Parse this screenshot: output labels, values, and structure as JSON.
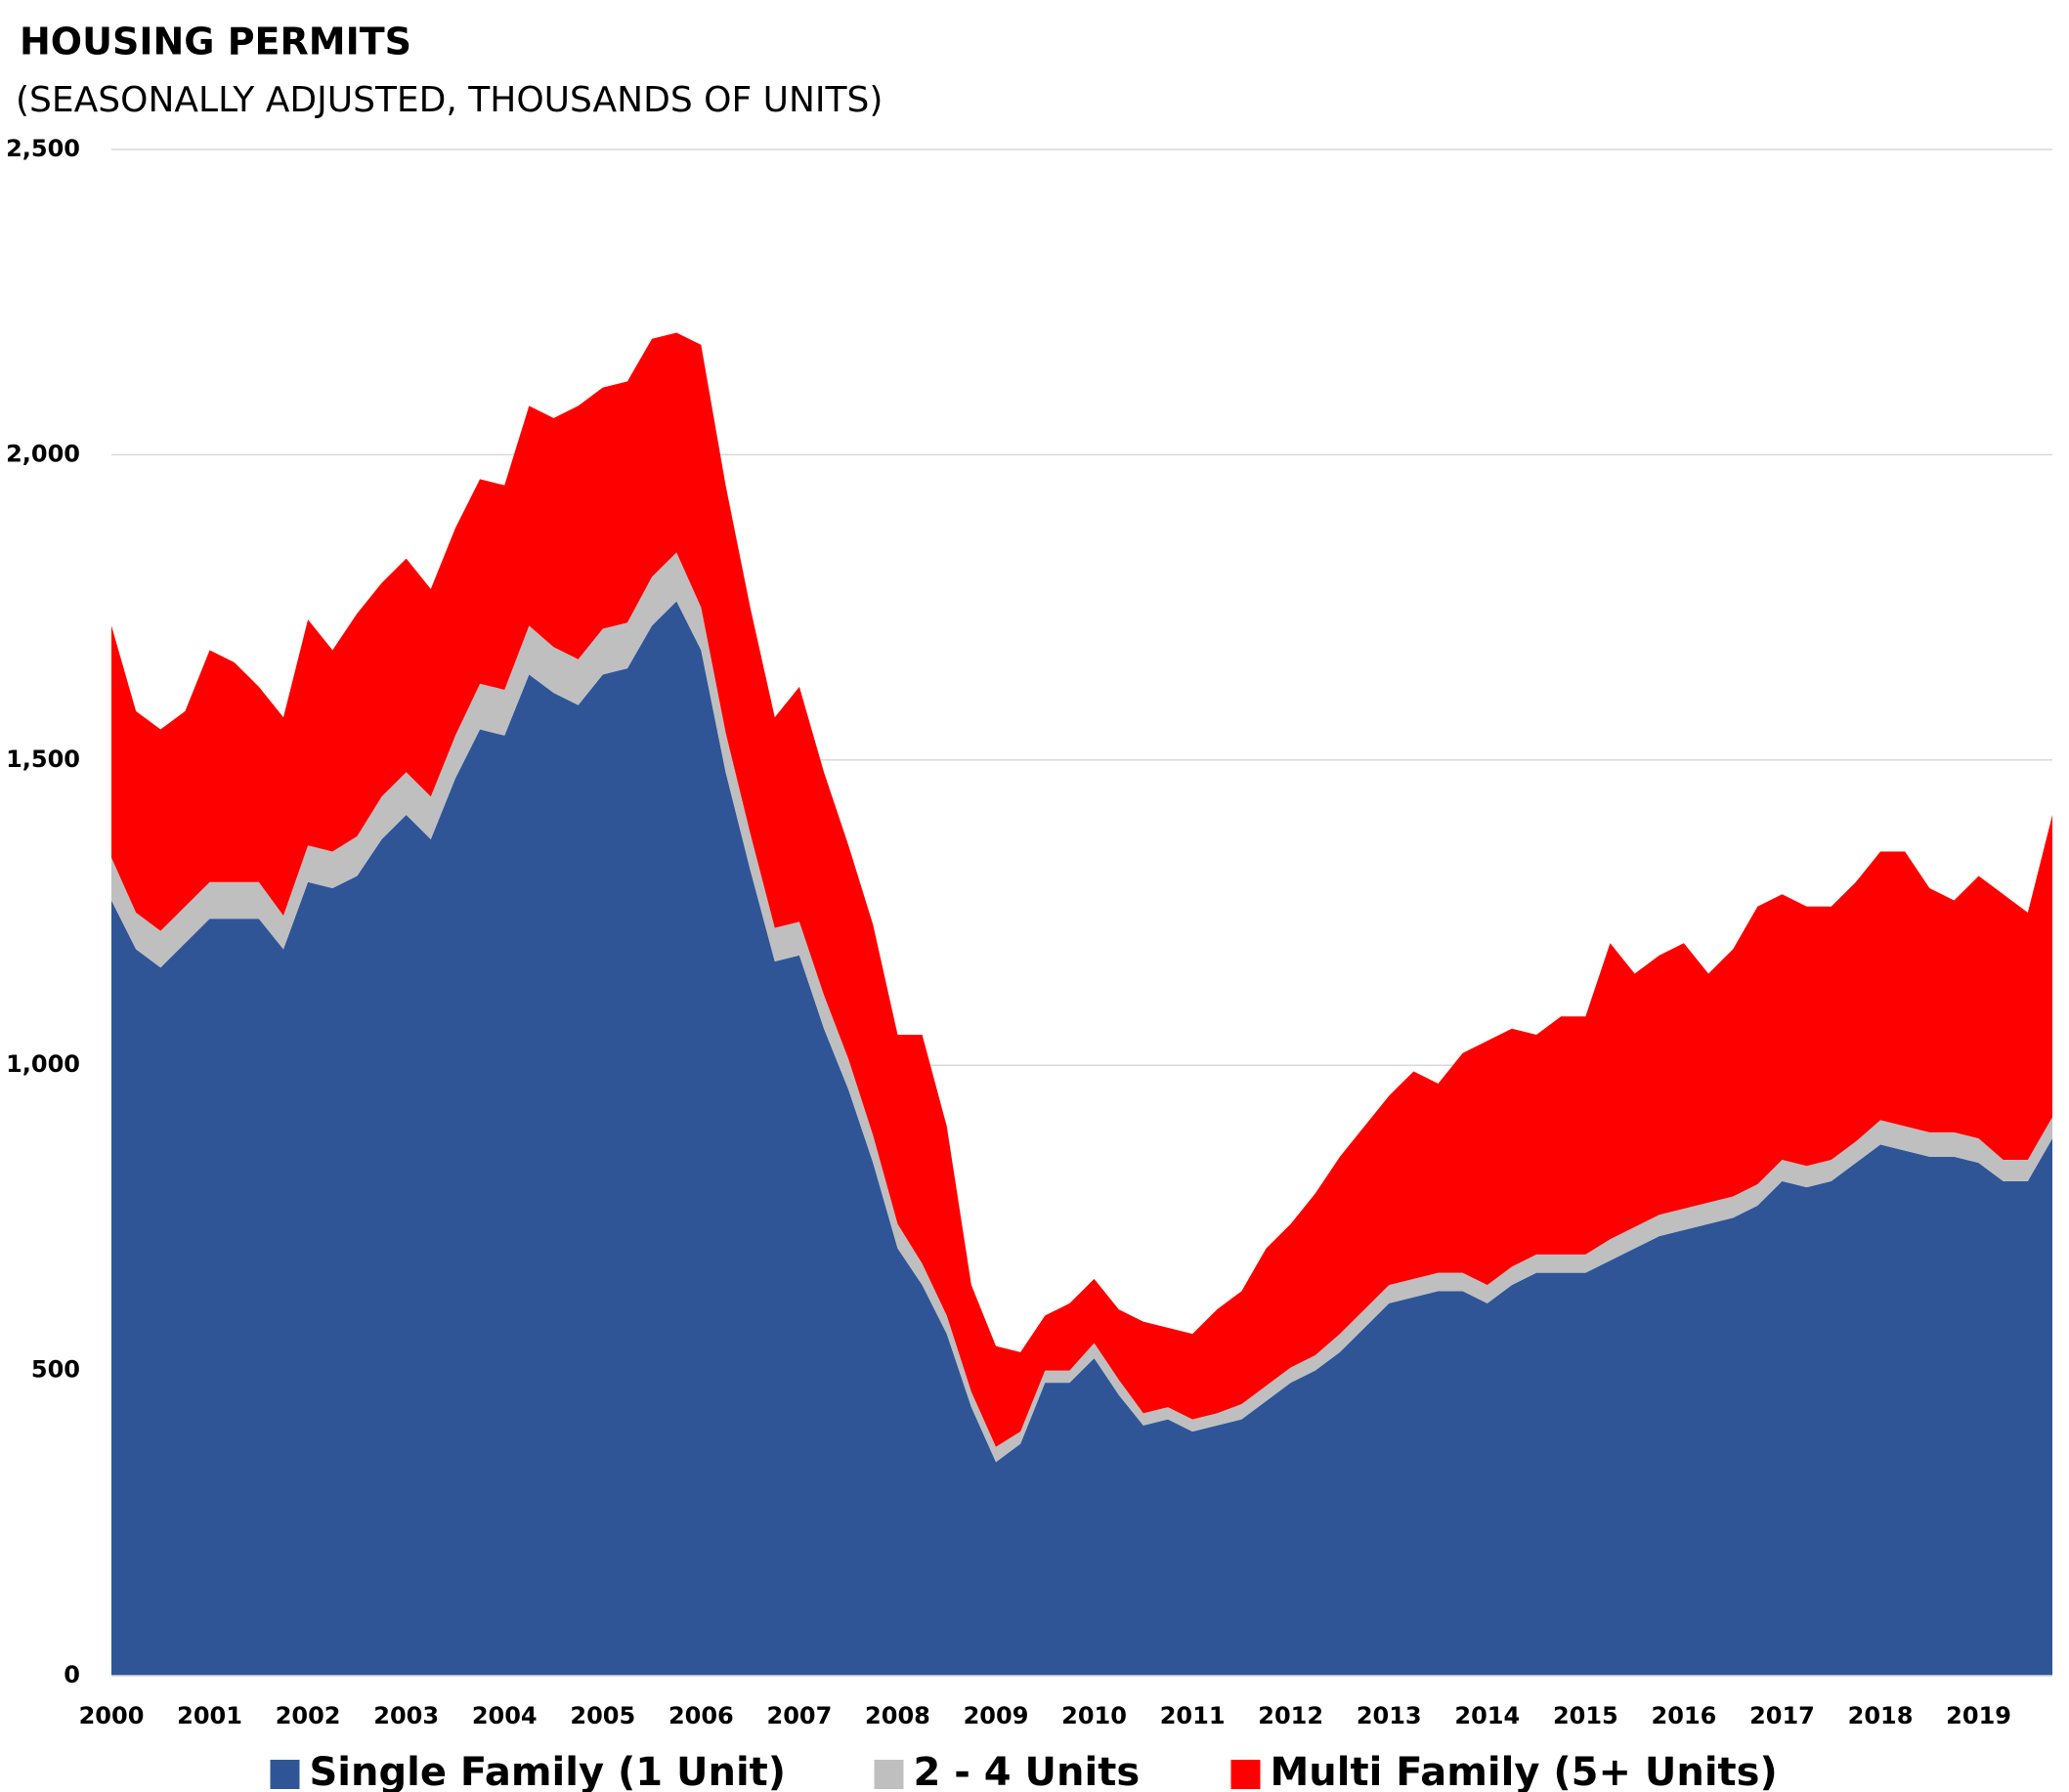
{
  "chart_data": {
    "type": "stacked-area",
    "title": "HOUSING PERMITS",
    "subtitle": "(SEASONALLY ADJUSTED, THOUSANDS OF UNITS)",
    "x": [
      2000,
      2000.25,
      2000.5,
      2000.75,
      2001,
      2001.25,
      2001.5,
      2001.75,
      2002,
      2002.25,
      2002.5,
      2002.75,
      2003,
      2003.25,
      2003.5,
      2003.75,
      2004,
      2004.25,
      2004.5,
      2004.75,
      2005,
      2005.25,
      2005.5,
      2005.75,
      2006,
      2006.25,
      2006.5,
      2006.75,
      2007,
      2007.25,
      2007.5,
      2007.75,
      2008,
      2008.25,
      2008.5,
      2008.75,
      2009,
      2009.25,
      2009.5,
      2009.75,
      2010,
      2010.25,
      2010.5,
      2010.75,
      2011,
      2011.25,
      2011.5,
      2011.75,
      2012,
      2012.25,
      2012.5,
      2012.75,
      2013,
      2013.25,
      2013.5,
      2013.75,
      2014,
      2014.25,
      2014.5,
      2014.75,
      2015,
      2015.25,
      2015.5,
      2015.75,
      2016,
      2016.25,
      2016.5,
      2016.75,
      2017,
      2017.25,
      2017.5,
      2017.75,
      2018,
      2018.25,
      2018.5,
      2018.75,
      2019,
      2019.25,
      2019.5,
      2019.75
    ],
    "series": [
      {
        "name": "Single Family (1 Unit)",
        "color": "#2f5597",
        "values": [
          1270,
          1190,
          1160,
          1200,
          1240,
          1240,
          1240,
          1190,
          1300,
          1290,
          1310,
          1370,
          1410,
          1370,
          1470,
          1550,
          1540,
          1640,
          1610,
          1590,
          1640,
          1650,
          1720,
          1760,
          1680,
          1480,
          1320,
          1170,
          1180,
          1060,
          960,
          840,
          700,
          640,
          560,
          440,
          350,
          380,
          480,
          480,
          520,
          460,
          410,
          420,
          400,
          410,
          420,
          450,
          480,
          500,
          530,
          570,
          610,
          620,
          630,
          630,
          610,
          640,
          660,
          660,
          660,
          680,
          700,
          720,
          730,
          740,
          750,
          770,
          810,
          800,
          810,
          840,
          870,
          860,
          850,
          850,
          840,
          810,
          810,
          880
        ]
      },
      {
        "name": "2 - 4 Units",
        "color": "#bfbfbf",
        "values": [
          70,
          60,
          60,
          60,
          60,
          60,
          60,
          55,
          60,
          60,
          65,
          70,
          70,
          70,
          70,
          75,
          75,
          80,
          75,
          75,
          75,
          75,
          80,
          80,
          70,
          65,
          60,
          55,
          55,
          55,
          50,
          45,
          40,
          35,
          30,
          25,
          25,
          20,
          20,
          20,
          25,
          25,
          20,
          20,
          20,
          20,
          25,
          25,
          25,
          25,
          30,
          30,
          30,
          30,
          30,
          30,
          30,
          30,
          30,
          30,
          30,
          35,
          35,
          35,
          35,
          35,
          35,
          35,
          35,
          35,
          35,
          35,
          40,
          40,
          40,
          40,
          40,
          35,
          35,
          35
        ]
      },
      {
        "name": "Multi Family (5+ Units)",
        "color": "#ff0000",
        "values": [
          380,
          330,
          330,
          320,
          380,
          360,
          320,
          325,
          370,
          330,
          365,
          350,
          350,
          340,
          340,
          335,
          335,
          360,
          375,
          415,
          395,
          395,
          390,
          360,
          430,
          405,
          370,
          345,
          385,
          365,
          350,
          345,
          310,
          375,
          310,
          175,
          165,
          130,
          90,
          110,
          105,
          115,
          150,
          130,
          140,
          170,
          185,
          225,
          235,
          265,
          290,
          300,
          310,
          340,
          310,
          360,
          400,
          390,
          360,
          390,
          390,
          485,
          415,
          425,
          435,
          375,
          405,
          455,
          435,
          425,
          415,
          425,
          440,
          450,
          400,
          380,
          430,
          435,
          405,
          495
        ]
      }
    ],
    "xlim": [
      2000,
      2019.75
    ],
    "xticks": [
      2000,
      2001,
      2002,
      2003,
      2004,
      2005,
      2006,
      2007,
      2008,
      2009,
      2010,
      2011,
      2012,
      2013,
      2014,
      2015,
      2016,
      2017,
      2018,
      2019
    ],
    "ylim": [
      0,
      2500
    ],
    "yticks": [
      0,
      500,
      {
        "value": 1000,
        "label": "1,000"
      },
      {
        "value": 1500,
        "label": "1,500"
      },
      {
        "value": 2000,
        "label": "2,000"
      },
      {
        "value": 2500,
        "label": "2,500"
      }
    ],
    "grid": true,
    "legend": "bottom"
  }
}
